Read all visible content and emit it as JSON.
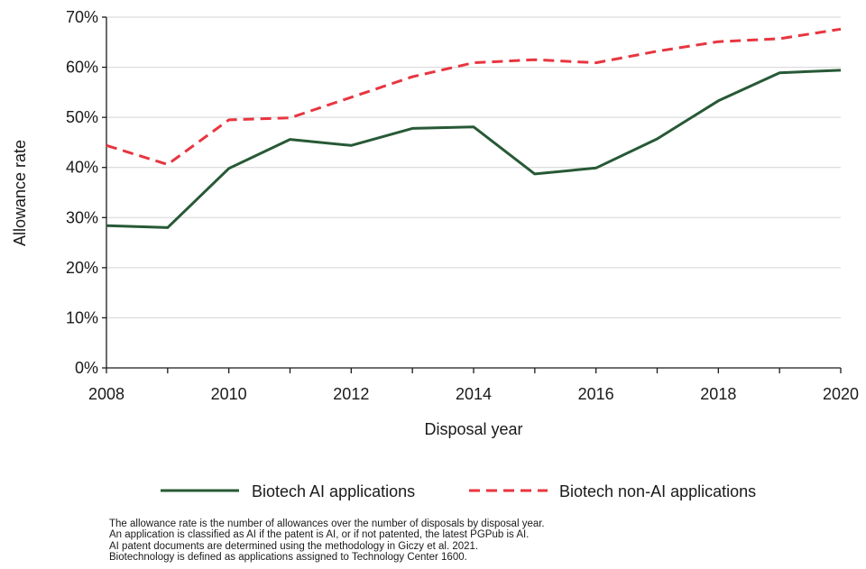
{
  "chart_data": {
    "type": "line",
    "xlabel": "Disposal year",
    "ylabel": "Allowance rate",
    "xlim": [
      2008,
      2020
    ],
    "ylim": [
      0,
      70
    ],
    "x_ticks": [
      "2008",
      "2010",
      "2012",
      "2014",
      "2016",
      "2018",
      "2020"
    ],
    "y_ticks": [
      "0%",
      "10%",
      "20%",
      "30%",
      "40%",
      "50%",
      "60%",
      "70%"
    ],
    "grid": "horizontal",
    "legend_position": "bottom",
    "x": [
      2008,
      2009,
      2010,
      2011,
      2012,
      2013,
      2014,
      2015,
      2016,
      2017,
      2018,
      2019,
      2020
    ],
    "series": [
      {
        "name": "Biotech AI applications",
        "color": "#275936",
        "style": "solid",
        "values": [
          28.4,
          28.0,
          39.8,
          45.6,
          44.4,
          47.8,
          48.1,
          38.7,
          39.9,
          45.7,
          53.3,
          58.9,
          59.4
        ]
      },
      {
        "name": "Biotech non-AI applications",
        "color": "#e8353f",
        "style": "dashed",
        "values": [
          44.4,
          40.6,
          49.5,
          49.9,
          54.0,
          58.1,
          60.9,
          61.5,
          60.9,
          63.2,
          65.1,
          65.7,
          67.6
        ]
      }
    ]
  },
  "notes": [
    "The allowance rate is the number of allowances over the number of disposals by disposal year.",
    "An application is classified as AI if the patent is AI, or if not patented, the latest PGPub is AI.",
    "AI patent documents are determined using the methodology in Giczy et al. 2021.",
    "Biotechnology is defined as applications assigned to Technology Center 1600."
  ]
}
